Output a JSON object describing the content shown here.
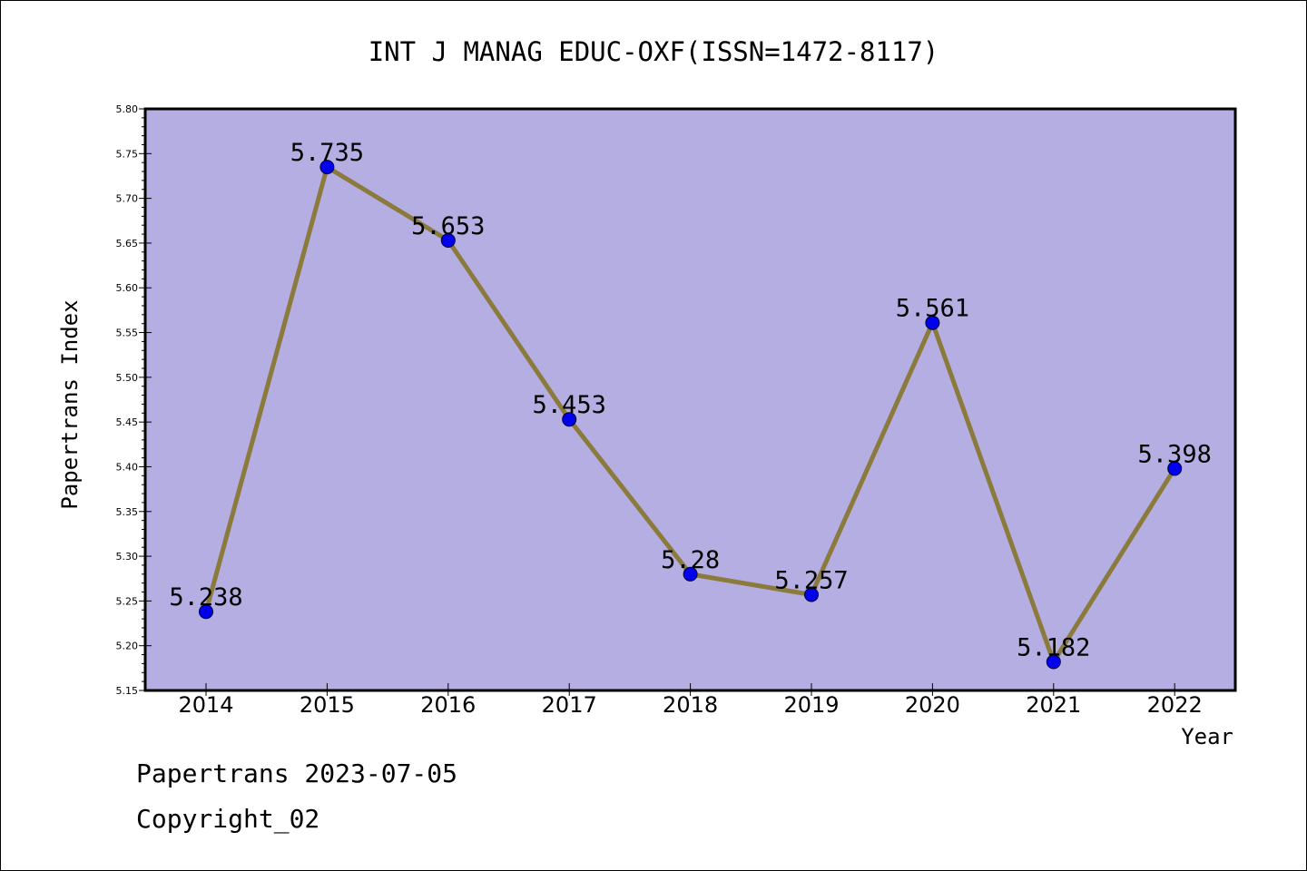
{
  "chart_data": {
    "type": "line",
    "title": "INT J MANAG EDUC-OXF(ISSN=1472-8117)",
    "xlabel": "Year",
    "ylabel": "Papertrans Index",
    "categories": [
      "2014",
      "2015",
      "2016",
      "2017",
      "2018",
      "2019",
      "2020",
      "2021",
      "2022"
    ],
    "values": [
      5.238,
      5.735,
      5.653,
      5.453,
      5.28,
      5.257,
      5.561,
      5.182,
      5.398
    ],
    "data_labels": [
      "5.238",
      "5.735",
      "5.653",
      "5.453",
      "5.28",
      "5.257",
      "5.561",
      "5.182",
      "5.398"
    ],
    "ylim": [
      5.15,
      5.8
    ],
    "yticks": [
      "5.15",
      "5.20",
      "5.25",
      "5.30",
      "5.35",
      "5.40",
      "5.45",
      "5.50",
      "5.55",
      "5.60",
      "5.65",
      "5.70",
      "5.75",
      "5.80"
    ],
    "grid": false,
    "legend": "none",
    "colors": {
      "plot_background": "#b5aee2",
      "line": "#8a7a3c",
      "marker": "#0000ee"
    }
  },
  "footer": {
    "line1": "Papertrans 2023-07-05",
    "line2": "Copyright_02"
  }
}
